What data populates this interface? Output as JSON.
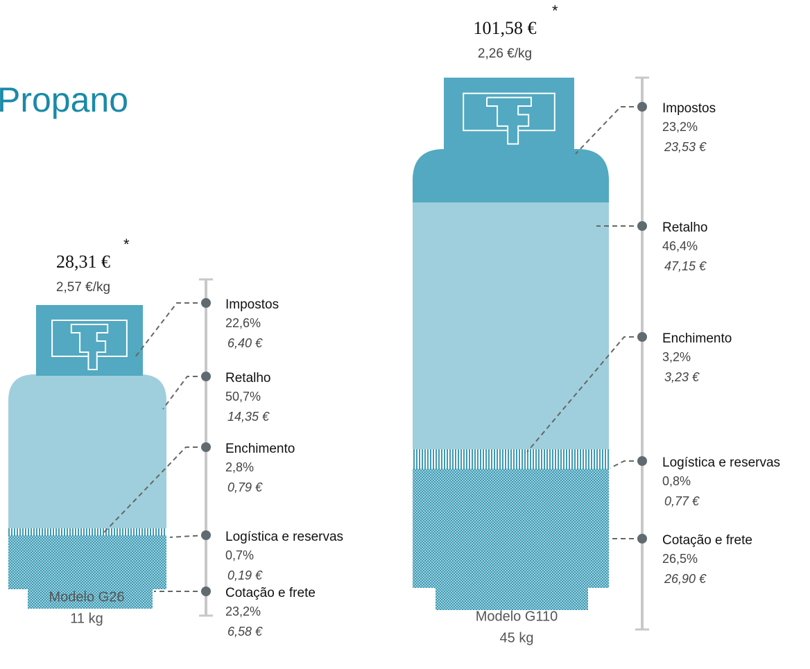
{
  "title": "Propano",
  "cylinders": [
    {
      "price": "28,31 €",
      "asterisk": "*",
      "per_kg": "2,57 €/kg",
      "model": "Modelo G26",
      "weight": "11 kg",
      "components": [
        {
          "name": "Impostos",
          "percent": "22,6%",
          "value": "6,40 €"
        },
        {
          "name": "Retalho",
          "percent": "50,7%",
          "value": "14,35 €"
        },
        {
          "name": "Enchimento",
          "percent": "2,8%",
          "value": "0,79 €"
        },
        {
          "name": "Logística e reservas",
          "percent": "0,7%",
          "value": "0,19 €"
        },
        {
          "name": "Cotação e frete",
          "percent": "23,2%",
          "value": "6,58 €"
        }
      ]
    },
    {
      "price": "101,58 €",
      "asterisk": "*",
      "per_kg": "2,26 €/kg",
      "model": "Modelo G110",
      "weight": "45 kg",
      "components": [
        {
          "name": "Impostos",
          "percent": "23,2%",
          "value": "23,53 €"
        },
        {
          "name": "Retalho",
          "percent": "46,4%",
          "value": "47,15 €"
        },
        {
          "name": "Enchimento",
          "percent": "3,2%",
          "value": "3,23 €"
        },
        {
          "name": "Logística e reservas",
          "percent": "0,8%",
          "value": "0,77 €"
        },
        {
          "name": "Cotação e frete",
          "percent": "26,5%",
          "value": "26,90 €"
        }
      ]
    }
  ]
}
